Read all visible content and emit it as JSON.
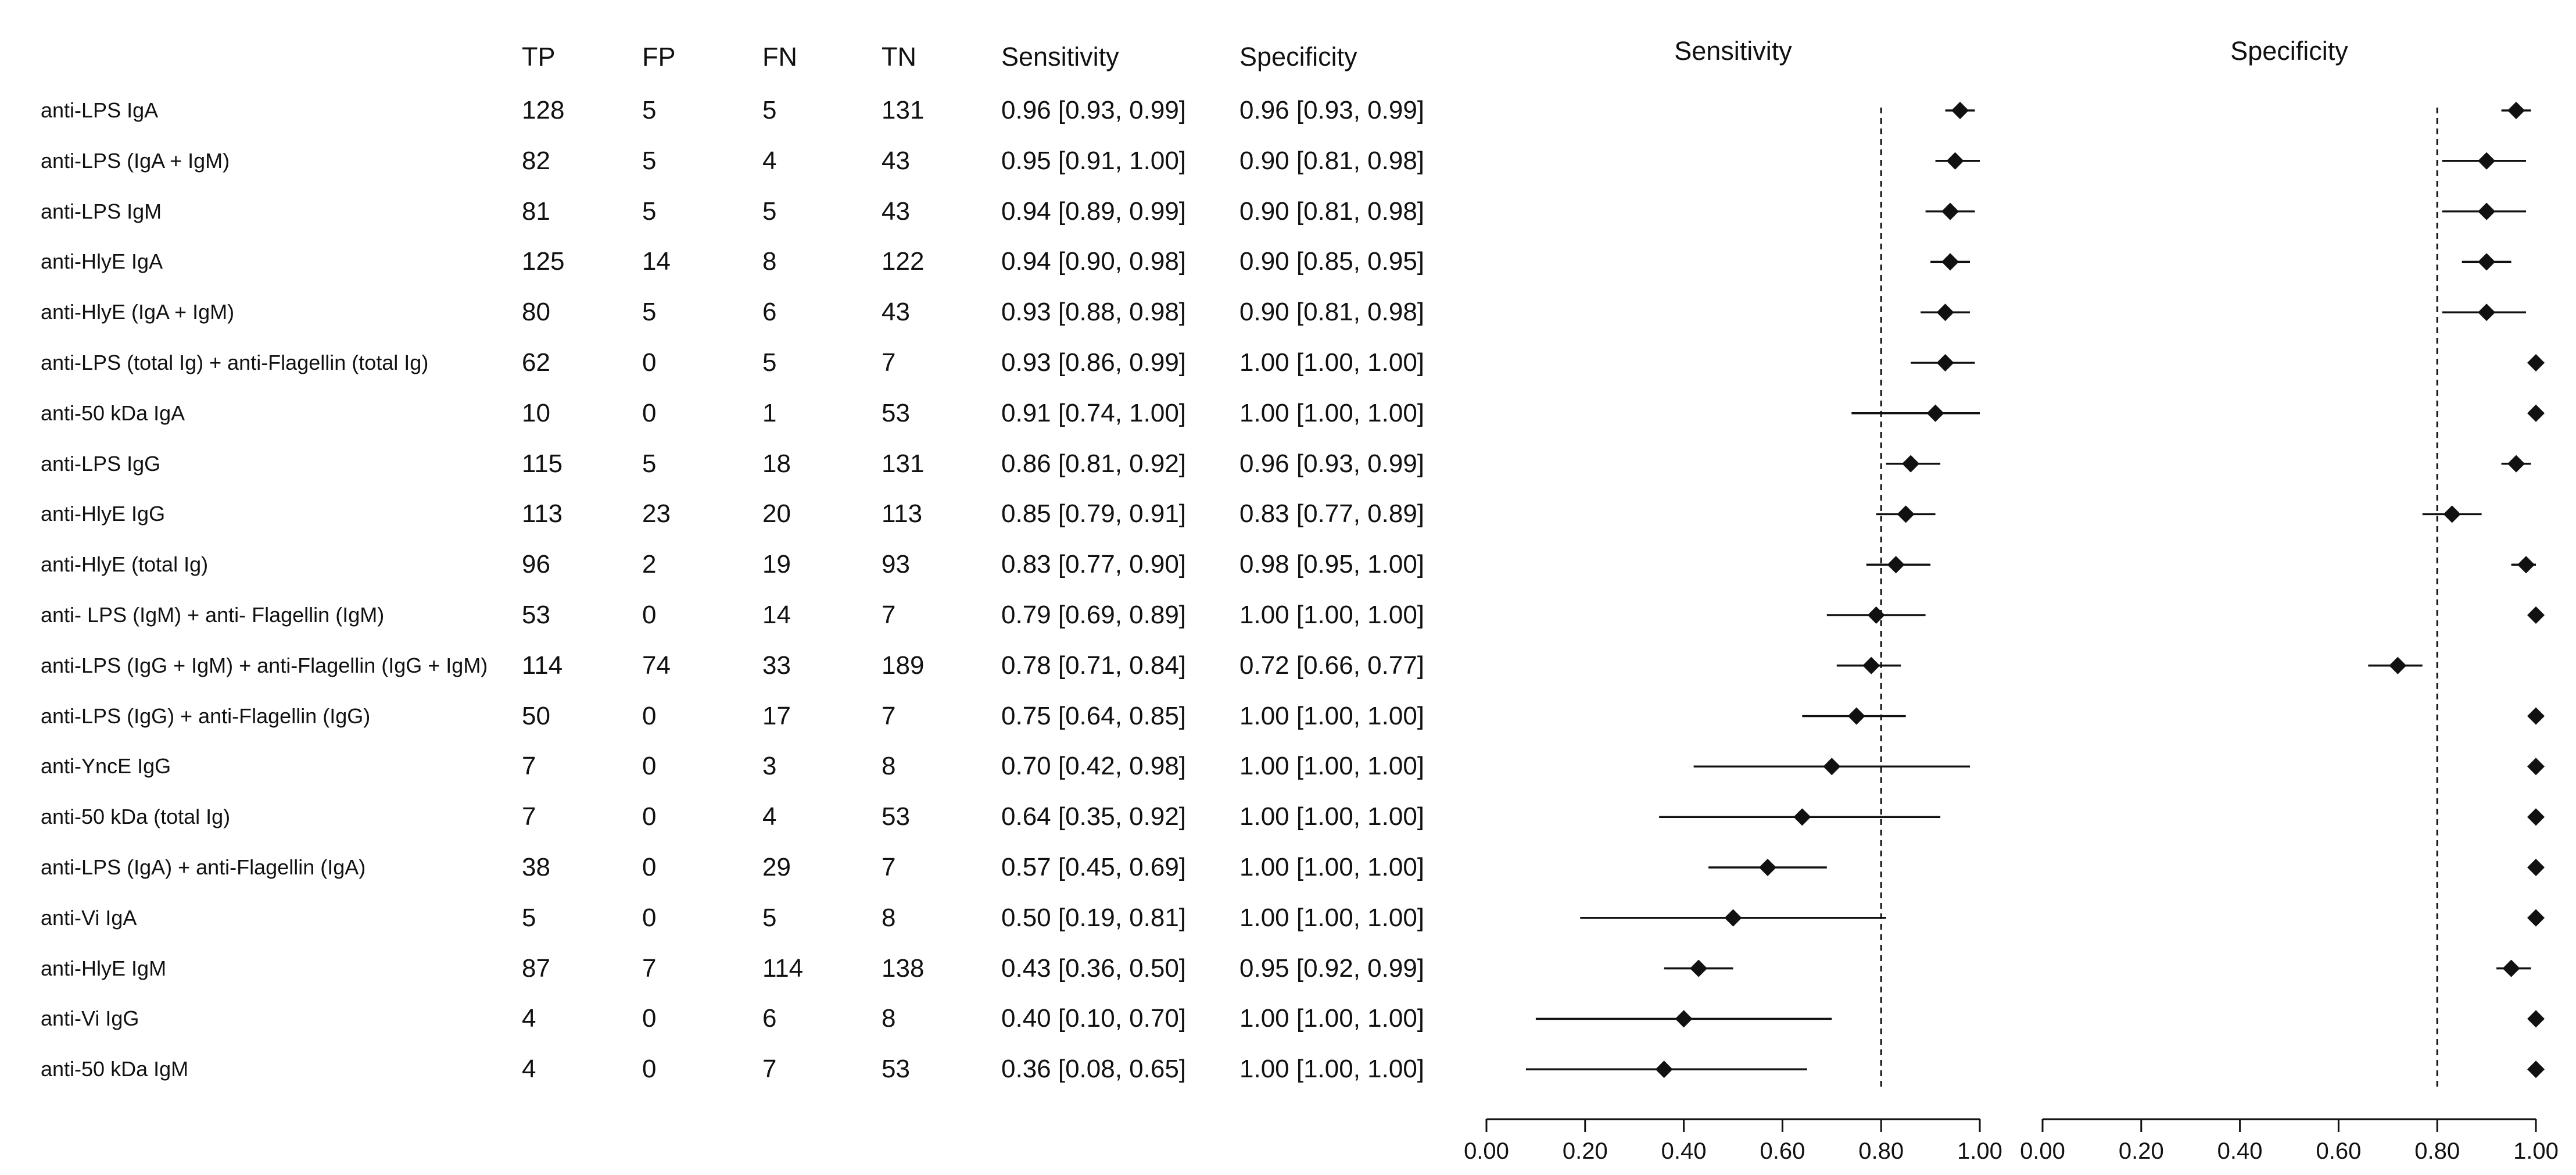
{
  "columns": {
    "tp": "TP",
    "fp": "FP",
    "fn": "FN",
    "tn": "TN",
    "sensitivity": "Sensitivity",
    "specificity": "Specificity"
  },
  "chart_data": {
    "type": "forest",
    "panels": [
      {
        "title": "Sensitivity",
        "xlim": [
          0,
          1
        ],
        "ticks": [
          "0.00",
          "0.20",
          "0.40",
          "0.60",
          "0.80",
          "1.00"
        ],
        "reference": 0.8
      },
      {
        "title": "Specificity",
        "xlim": [
          0,
          1
        ],
        "ticks": [
          "0.00",
          "0.20",
          "0.40",
          "0.60",
          "0.80",
          "1.00"
        ],
        "reference": 0.8
      }
    ],
    "rows": [
      {
        "label": "anti-LPS IgA",
        "tp": "128",
        "fp": "5",
        "fn": "5",
        "tn": "131",
        "sens_text": "0.96 [0.93, 0.99]",
        "spec_text": "0.96 [0.93, 0.99]",
        "sens": [
          0.96,
          0.93,
          0.99
        ],
        "spec": [
          0.96,
          0.93,
          0.99
        ]
      },
      {
        "label": "anti-LPS (IgA + IgM)",
        "tp": "82",
        "fp": "5",
        "fn": "4",
        "tn": "43",
        "sens_text": "0.95 [0.91, 1.00]",
        "spec_text": "0.90 [0.81, 0.98]",
        "sens": [
          0.95,
          0.91,
          1.0
        ],
        "spec": [
          0.9,
          0.81,
          0.98
        ]
      },
      {
        "label": "anti-LPS IgM",
        "tp": "81",
        "fp": "5",
        "fn": "5",
        "tn": "43",
        "sens_text": "0.94 [0.89, 0.99]",
        "spec_text": "0.90 [0.81, 0.98]",
        "sens": [
          0.94,
          0.89,
          0.99
        ],
        "spec": [
          0.9,
          0.81,
          0.98
        ]
      },
      {
        "label": "anti-HlyE IgA",
        "tp": "125",
        "fp": "14",
        "fn": "8",
        "tn": "122",
        "sens_text": "0.94 [0.90, 0.98]",
        "spec_text": "0.90 [0.85, 0.95]",
        "sens": [
          0.94,
          0.9,
          0.98
        ],
        "spec": [
          0.9,
          0.85,
          0.95
        ]
      },
      {
        "label": "anti-HlyE (IgA + IgM)",
        "tp": "80",
        "fp": "5",
        "fn": "6",
        "tn": "43",
        "sens_text": "0.93 [0.88, 0.98]",
        "spec_text": "0.90 [0.81, 0.98]",
        "sens": [
          0.93,
          0.88,
          0.98
        ],
        "spec": [
          0.9,
          0.81,
          0.98
        ]
      },
      {
        "label": "anti-LPS (total Ig) + anti-Flagellin  (total Ig)",
        "tp": "62",
        "fp": "0",
        "fn": "5",
        "tn": "7",
        "sens_text": "0.93 [0.86, 0.99]",
        "spec_text": "1.00 [1.00, 1.00]",
        "sens": [
          0.93,
          0.86,
          0.99
        ],
        "spec": [
          1.0,
          1.0,
          1.0
        ]
      },
      {
        "label": "anti-50 kDa IgA",
        "tp": "10",
        "fp": "0",
        "fn": "1",
        "tn": "53",
        "sens_text": "0.91 [0.74, 1.00]",
        "spec_text": "1.00 [1.00, 1.00]",
        "sens": [
          0.91,
          0.74,
          1.0
        ],
        "spec": [
          1.0,
          1.0,
          1.0
        ]
      },
      {
        "label": "anti-LPS IgG",
        "tp": "115",
        "fp": "5",
        "fn": "18",
        "tn": "131",
        "sens_text": "0.86 [0.81, 0.92]",
        "spec_text": "0.96 [0.93, 0.99]",
        "sens": [
          0.86,
          0.81,
          0.92
        ],
        "spec": [
          0.96,
          0.93,
          0.99
        ]
      },
      {
        "label": "anti-HlyE IgG",
        "tp": "113",
        "fp": "23",
        "fn": "20",
        "tn": "113",
        "sens_text": "0.85 [0.79, 0.91]",
        "spec_text": "0.83 [0.77, 0.89]",
        "sens": [
          0.85,
          0.79,
          0.91
        ],
        "spec": [
          0.83,
          0.77,
          0.89
        ]
      },
      {
        "label": "anti-HlyE (total Ig)",
        "tp": "96",
        "fp": "2",
        "fn": "19",
        "tn": "93",
        "sens_text": "0.83 [0.77, 0.90]",
        "spec_text": "0.98 [0.95, 1.00]",
        "sens": [
          0.83,
          0.77,
          0.9
        ],
        "spec": [
          0.98,
          0.95,
          1.0
        ]
      },
      {
        "label": "anti- LPS (IgM) + anti- Flagellin  (IgM)",
        "tp": "53",
        "fp": "0",
        "fn": "14",
        "tn": "7",
        "sens_text": "0.79 [0.69, 0.89]",
        "spec_text": "1.00 [1.00, 1.00]",
        "sens": [
          0.79,
          0.69,
          0.89
        ],
        "spec": [
          1.0,
          1.0,
          1.0
        ]
      },
      {
        "label": "anti-LPS (IgG + IgM) + anti-Flagellin (IgG + IgM)",
        "tp": "114",
        "fp": "74",
        "fn": "33",
        "tn": "189",
        "sens_text": "0.78 [0.71, 0.84]",
        "spec_text": "0.72 [0.66, 0.77]",
        "sens": [
          0.78,
          0.71,
          0.84
        ],
        "spec": [
          0.72,
          0.66,
          0.77
        ]
      },
      {
        "label": "anti-LPS (IgG) + anti-Flagellin  (IgG)",
        "tp": "50",
        "fp": "0",
        "fn": "17",
        "tn": "7",
        "sens_text": "0.75 [0.64, 0.85]",
        "spec_text": "1.00 [1.00, 1.00]",
        "sens": [
          0.75,
          0.64,
          0.85
        ],
        "spec": [
          1.0,
          1.0,
          1.0
        ]
      },
      {
        "label": "anti-YncE IgG",
        "tp": "7",
        "fp": "0",
        "fn": "3",
        "tn": "8",
        "sens_text": "0.70 [0.42, 0.98]",
        "spec_text": "1.00 [1.00, 1.00]",
        "sens": [
          0.7,
          0.42,
          0.98
        ],
        "spec": [
          1.0,
          1.0,
          1.0
        ]
      },
      {
        "label": "anti-50 kDa (total Ig)",
        "tp": "7",
        "fp": "0",
        "fn": "4",
        "tn": "53",
        "sens_text": "0.64 [0.35, 0.92]",
        "spec_text": "1.00 [1.00, 1.00]",
        "sens": [
          0.64,
          0.35,
          0.92
        ],
        "spec": [
          1.0,
          1.0,
          1.0
        ]
      },
      {
        "label": "anti-LPS (IgA) + anti-Flagellin  (IgA)",
        "tp": "38",
        "fp": "0",
        "fn": "29",
        "tn": "7",
        "sens_text": "0.57 [0.45, 0.69]",
        "spec_text": "1.00 [1.00, 1.00]",
        "sens": [
          0.57,
          0.45,
          0.69
        ],
        "spec": [
          1.0,
          1.0,
          1.0
        ]
      },
      {
        "label": "anti-Vi IgA",
        "tp": "5",
        "fp": "0",
        "fn": "5",
        "tn": "8",
        "sens_text": "0.50 [0.19, 0.81]",
        "spec_text": "1.00 [1.00, 1.00]",
        "sens": [
          0.5,
          0.19,
          0.81
        ],
        "spec": [
          1.0,
          1.0,
          1.0
        ]
      },
      {
        "label": "anti-HlyE IgM",
        "tp": "87",
        "fp": "7",
        "fn": "114",
        "tn": "138",
        "sens_text": "0.43 [0.36, 0.50]",
        "spec_text": "0.95 [0.92, 0.99]",
        "sens": [
          0.43,
          0.36,
          0.5
        ],
        "spec": [
          0.95,
          0.92,
          0.99
        ]
      },
      {
        "label": "anti-Vi IgG",
        "tp": "4",
        "fp": "0",
        "fn": "6",
        "tn": "8",
        "sens_text": "0.40 [0.10, 0.70]",
        "spec_text": "1.00 [1.00, 1.00]",
        "sens": [
          0.4,
          0.1,
          0.7
        ],
        "spec": [
          1.0,
          1.0,
          1.0
        ]
      },
      {
        "label": "anti-50 kDa IgM",
        "tp": "4",
        "fp": "0",
        "fn": "7",
        "tn": "53",
        "sens_text": "0.36 [0.08, 0.65]",
        "spec_text": "1.00 [1.00, 1.00]",
        "sens": [
          0.36,
          0.08,
          0.65
        ],
        "spec": [
          1.0,
          1.0,
          1.0
        ]
      }
    ]
  }
}
